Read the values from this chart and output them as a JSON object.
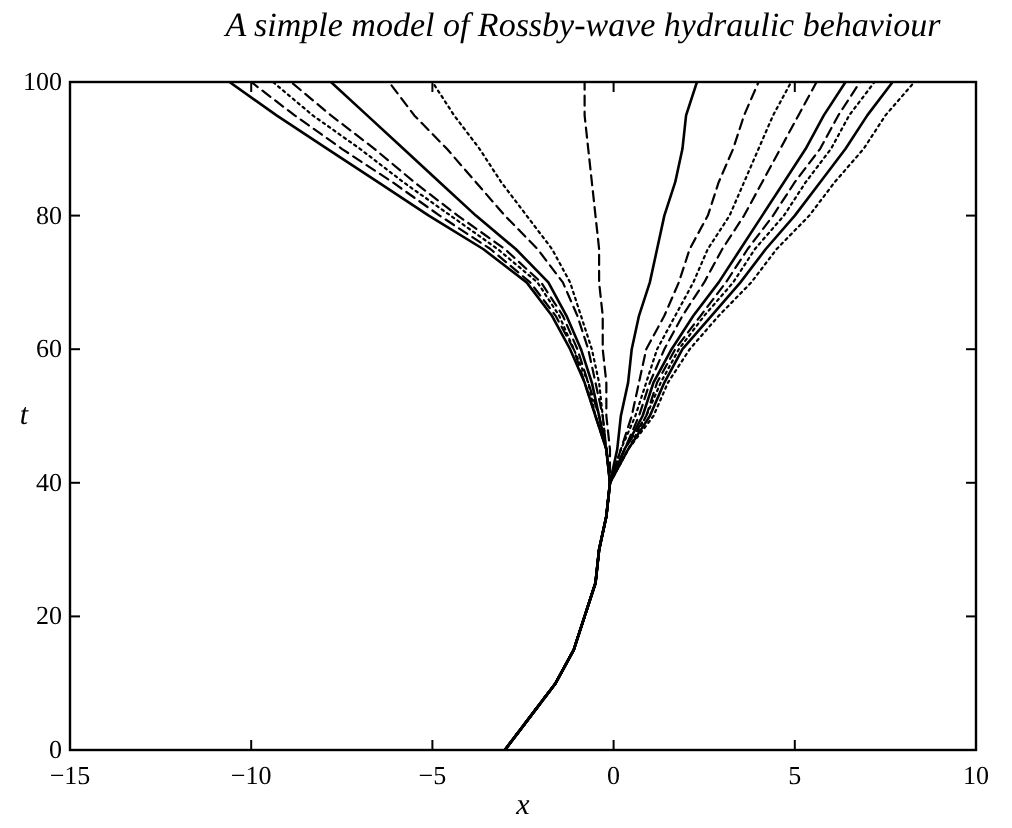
{
  "chart_data": {
    "type": "line",
    "title": "A simple model of Rossby-wave hydraulic behaviour",
    "xlabel": "x",
    "ylabel": "t",
    "xlim": [
      -15,
      10
    ],
    "ylim": [
      0,
      100
    ],
    "xticks": [
      -15,
      -10,
      -5,
      0,
      5,
      10
    ],
    "yticks": [
      0,
      20,
      40,
      60,
      80,
      100
    ],
    "series": [
      {
        "color": "#000000",
        "line_style": "solid",
        "x": [
          -3.0,
          -2.3,
          -1.6,
          -1.1,
          -0.8,
          -0.5,
          -0.4,
          -0.2,
          -0.1,
          -0.2,
          -0.5,
          -0.8,
          -1.2,
          -1.7,
          -2.4,
          -3.6,
          -5.1,
          -6.5,
          -7.9,
          -9.3,
          -10.6
        ],
        "values": [
          0,
          5,
          10,
          15,
          20,
          25,
          30,
          35,
          40,
          45,
          50,
          55,
          60,
          65,
          70,
          75,
          80,
          85,
          90,
          95,
          100
        ]
      },
      {
        "color": "#000000",
        "line_style": "dashed",
        "x": [
          -3.0,
          -2.3,
          -1.6,
          -1.1,
          -0.8,
          -0.5,
          -0.4,
          -0.2,
          -0.1,
          -0.2,
          -0.5,
          -0.8,
          -1.1,
          -1.6,
          -2.3,
          -3.4,
          -4.8,
          -6.1,
          -7.5,
          -8.8,
          -10.0
        ],
        "values": [
          0,
          5,
          10,
          15,
          20,
          25,
          30,
          35,
          40,
          45,
          50,
          55,
          60,
          65,
          70,
          75,
          80,
          85,
          90,
          95,
          100
        ]
      },
      {
        "color": "#000000",
        "line_style": "dotted",
        "x": [
          -3.0,
          -2.3,
          -1.6,
          -1.1,
          -0.8,
          -0.5,
          -0.4,
          -0.2,
          -0.1,
          -0.2,
          -0.5,
          -0.7,
          -1.1,
          -1.5,
          -2.1,
          -3.2,
          -4.5,
          -5.8,
          -7.0,
          -8.3,
          -9.4
        ],
        "values": [
          0,
          5,
          10,
          15,
          20,
          25,
          30,
          35,
          40,
          45,
          50,
          55,
          60,
          65,
          70,
          75,
          80,
          85,
          90,
          95,
          100
        ]
      },
      {
        "color": "#000000",
        "line_style": "dashed",
        "x": [
          -3.0,
          -2.3,
          -1.6,
          -1.1,
          -0.8,
          -0.5,
          -0.4,
          -0.2,
          -0.1,
          -0.2,
          -0.4,
          -0.7,
          -1.0,
          -1.4,
          -2.0,
          -3.0,
          -4.3,
          -5.5,
          -6.6,
          -7.8,
          -8.9
        ],
        "values": [
          0,
          5,
          10,
          15,
          20,
          25,
          30,
          35,
          40,
          45,
          50,
          55,
          60,
          65,
          70,
          75,
          80,
          85,
          90,
          95,
          100
        ]
      },
      {
        "color": "#000000",
        "line_style": "solid",
        "x": [
          -3.0,
          -2.3,
          -1.6,
          -1.1,
          -0.8,
          -0.5,
          -0.4,
          -0.2,
          -0.1,
          -0.2,
          -0.4,
          -0.6,
          -0.9,
          -1.3,
          -1.8,
          -2.7,
          -3.8,
          -4.8,
          -5.8,
          -6.8,
          -7.8
        ],
        "values": [
          0,
          5,
          10,
          15,
          20,
          25,
          30,
          35,
          40,
          45,
          50,
          55,
          60,
          65,
          70,
          75,
          80,
          85,
          90,
          95,
          100
        ]
      },
      {
        "color": "#000000",
        "line_style": "dashed",
        "x": [
          -3.0,
          -2.3,
          -1.6,
          -1.1,
          -0.8,
          -0.5,
          -0.4,
          -0.2,
          -0.1,
          -0.2,
          -0.3,
          -0.5,
          -0.7,
          -1.0,
          -1.4,
          -2.1,
          -3.0,
          -3.8,
          -4.6,
          -5.5,
          -6.2
        ],
        "values": [
          0,
          5,
          10,
          15,
          20,
          25,
          30,
          35,
          40,
          45,
          50,
          55,
          60,
          65,
          70,
          75,
          80,
          85,
          90,
          95,
          100
        ]
      },
      {
        "color": "#000000",
        "line_style": "dotted",
        "x": [
          -3.0,
          -2.3,
          -1.6,
          -1.1,
          -0.8,
          -0.5,
          -0.4,
          -0.2,
          -0.1,
          -0.2,
          -0.3,
          -0.4,
          -0.6,
          -0.9,
          -1.2,
          -1.7,
          -2.4,
          -3.1,
          -3.7,
          -4.4,
          -5.0
        ],
        "values": [
          0,
          5,
          10,
          15,
          20,
          25,
          30,
          35,
          40,
          45,
          50,
          55,
          60,
          65,
          70,
          75,
          80,
          85,
          90,
          95,
          100
        ]
      },
      {
        "color": "#000000",
        "line_style": "dashed",
        "x": [
          -3.0,
          -2.3,
          -1.6,
          -1.1,
          -0.8,
          -0.5,
          -0.4,
          -0.2,
          -0.1,
          -0.1,
          -0.2,
          -0.2,
          -0.3,
          -0.3,
          -0.4,
          -0.4,
          -0.5,
          -0.6,
          -0.7,
          -0.8,
          -0.8
        ],
        "values": [
          0,
          5,
          10,
          15,
          20,
          25,
          30,
          35,
          40,
          45,
          50,
          55,
          60,
          65,
          70,
          75,
          80,
          85,
          90,
          95,
          100
        ]
      },
      {
        "color": "#000000",
        "line_style": "solid",
        "x": [
          -3.0,
          -2.3,
          -1.6,
          -1.1,
          -0.8,
          -0.5,
          -0.4,
          -0.2,
          -0.1,
          0.1,
          0.2,
          0.4,
          0.5,
          0.7,
          1.0,
          1.2,
          1.4,
          1.7,
          1.9,
          2.0,
          2.3
        ],
        "values": [
          0,
          5,
          10,
          15,
          20,
          25,
          30,
          35,
          40,
          45,
          50,
          55,
          60,
          65,
          70,
          75,
          80,
          85,
          90,
          95,
          100
        ]
      },
      {
        "color": "#000000",
        "line_style": "dashed",
        "x": [
          -3.0,
          -2.3,
          -1.6,
          -1.1,
          -0.8,
          -0.5,
          -0.4,
          -0.2,
          -0.1,
          0.2,
          0.5,
          0.7,
          0.9,
          1.4,
          1.8,
          2.1,
          2.6,
          2.9,
          3.3,
          3.6,
          4.0
        ],
        "values": [
          0,
          5,
          10,
          15,
          20,
          25,
          30,
          35,
          40,
          45,
          50,
          55,
          60,
          65,
          70,
          75,
          80,
          85,
          90,
          95,
          100
        ]
      },
      {
        "color": "#000000",
        "line_style": "dotted",
        "x": [
          -3.0,
          -2.3,
          -1.6,
          -1.1,
          -0.8,
          -0.5,
          -0.4,
          -0.2,
          -0.1,
          0.2,
          0.6,
          0.9,
          1.2,
          1.7,
          2.2,
          2.6,
          3.2,
          3.6,
          4.0,
          4.4,
          4.9
        ],
        "values": [
          0,
          5,
          10,
          15,
          20,
          25,
          30,
          35,
          40,
          45,
          50,
          55,
          60,
          65,
          70,
          75,
          80,
          85,
          90,
          95,
          100
        ]
      },
      {
        "color": "#000000",
        "line_style": "dashed",
        "x": [
          -3.0,
          -2.3,
          -1.6,
          -1.1,
          -0.8,
          -0.5,
          -0.4,
          -0.2,
          -0.1,
          0.3,
          0.7,
          1.0,
          1.4,
          1.9,
          2.5,
          3.0,
          3.6,
          4.1,
          4.6,
          5.1,
          5.6
        ],
        "values": [
          0,
          5,
          10,
          15,
          20,
          25,
          30,
          35,
          40,
          45,
          50,
          55,
          60,
          65,
          70,
          75,
          80,
          85,
          90,
          95,
          100
        ]
      },
      {
        "color": "#000000",
        "line_style": "solid",
        "x": [
          -3.0,
          -2.3,
          -1.6,
          -1.1,
          -0.8,
          -0.5,
          -0.4,
          -0.2,
          -0.1,
          0.3,
          0.8,
          1.1,
          1.6,
          2.2,
          2.9,
          3.5,
          4.1,
          4.7,
          5.3,
          5.8,
          6.4
        ],
        "values": [
          0,
          5,
          10,
          15,
          20,
          25,
          30,
          35,
          40,
          45,
          50,
          55,
          60,
          65,
          70,
          75,
          80,
          85,
          90,
          95,
          100
        ]
      },
      {
        "color": "#000000",
        "line_style": "dashed",
        "x": [
          -3.0,
          -2.3,
          -1.6,
          -1.1,
          -0.8,
          -0.5,
          -0.4,
          -0.2,
          -0.1,
          0.3,
          0.9,
          1.2,
          1.7,
          2.4,
          3.1,
          3.7,
          4.4,
          5.0,
          5.7,
          6.2,
          6.8
        ],
        "values": [
          0,
          5,
          10,
          15,
          20,
          25,
          30,
          35,
          40,
          45,
          50,
          55,
          60,
          65,
          70,
          75,
          80,
          85,
          90,
          95,
          100
        ]
      },
      {
        "color": "#000000",
        "line_style": "dotted",
        "x": [
          -3.0,
          -2.3,
          -1.6,
          -1.1,
          -0.8,
          -0.5,
          -0.4,
          -0.2,
          -0.1,
          0.4,
          0.9,
          1.3,
          1.8,
          2.5,
          3.3,
          3.9,
          4.7,
          5.3,
          6.0,
          6.5,
          7.2
        ],
        "values": [
          0,
          5,
          10,
          15,
          20,
          25,
          30,
          35,
          40,
          45,
          50,
          55,
          60,
          65,
          70,
          75,
          80,
          85,
          90,
          95,
          100
        ]
      },
      {
        "color": "#000000",
        "line_style": "solid",
        "x": [
          -3.0,
          -2.3,
          -1.6,
          -1.1,
          -0.8,
          -0.5,
          -0.4,
          -0.2,
          -0.1,
          0.4,
          1.0,
          1.4,
          1.9,
          2.7,
          3.5,
          4.2,
          5.0,
          5.7,
          6.4,
          7.0,
          7.7
        ],
        "values": [
          0,
          5,
          10,
          15,
          20,
          25,
          30,
          35,
          40,
          45,
          50,
          55,
          60,
          65,
          70,
          75,
          80,
          85,
          90,
          95,
          100
        ]
      },
      {
        "color": "#000000",
        "line_style": "dotted",
        "x": [
          -3.0,
          -2.3,
          -1.6,
          -1.1,
          -0.8,
          -0.5,
          -0.4,
          -0.2,
          -0.1,
          0.4,
          1.1,
          1.5,
          2.1,
          2.9,
          3.8,
          4.5,
          5.4,
          6.1,
          6.9,
          7.5,
          8.3
        ],
        "values": [
          0,
          5,
          10,
          15,
          20,
          25,
          30,
          35,
          40,
          45,
          50,
          55,
          60,
          65,
          70,
          75,
          80,
          85,
          90,
          95,
          100
        ]
      }
    ]
  }
}
